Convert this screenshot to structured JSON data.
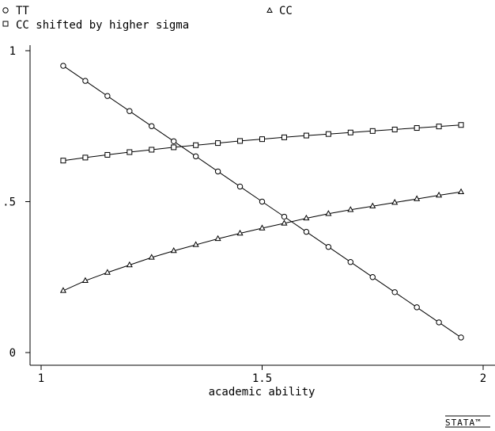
{
  "chart_data": {
    "type": "line",
    "title": "",
    "xlabel": "academic ability",
    "ylabel": "",
    "xlim": [
      1,
      2
    ],
    "ylim": [
      0,
      1
    ],
    "x_ticks": [
      1,
      1.5,
      2
    ],
    "x_tick_labels": [
      "1",
      "1.5",
      "2"
    ],
    "y_ticks": [
      0,
      0.5,
      1
    ],
    "y_tick_labels": [
      "0",
      ".5",
      "1"
    ],
    "grid": false,
    "legend_position": "top",
    "x": [
      1.05,
      1.1,
      1.15,
      1.2,
      1.25,
      1.3,
      1.35,
      1.4,
      1.45,
      1.5,
      1.55,
      1.6,
      1.65,
      1.7,
      1.75,
      1.8,
      1.85,
      1.9,
      1.95
    ],
    "series": [
      {
        "name": "TT",
        "marker": "circle",
        "values": [
          0.95,
          0.9,
          0.85,
          0.8,
          0.75,
          0.7,
          0.65,
          0.6,
          0.55,
          0.5,
          0.45,
          0.4,
          0.35,
          0.3,
          0.25,
          0.2,
          0.15,
          0.1,
          0.05
        ]
      },
      {
        "name": "CC",
        "marker": "triangle",
        "values": [
          0.205,
          0.238,
          0.265,
          0.29,
          0.315,
          0.337,
          0.357,
          0.377,
          0.395,
          0.412,
          0.428,
          0.445,
          0.46,
          0.473,
          0.485,
          0.497,
          0.509,
          0.521,
          0.532
        ]
      },
      {
        "name": "CC shifted by higher sigma",
        "marker": "square",
        "values": [
          0.636,
          0.646,
          0.655,
          0.664,
          0.672,
          0.68,
          0.687,
          0.694,
          0.701,
          0.707,
          0.713,
          0.719,
          0.724,
          0.729,
          0.734,
          0.739,
          0.744,
          0.749,
          0.754
        ]
      }
    ]
  },
  "legend": {
    "tt": "TT",
    "cc": "CC",
    "cc_shifted": "CC shifted by higher sigma"
  },
  "logo": {
    "text": "STATA™"
  }
}
